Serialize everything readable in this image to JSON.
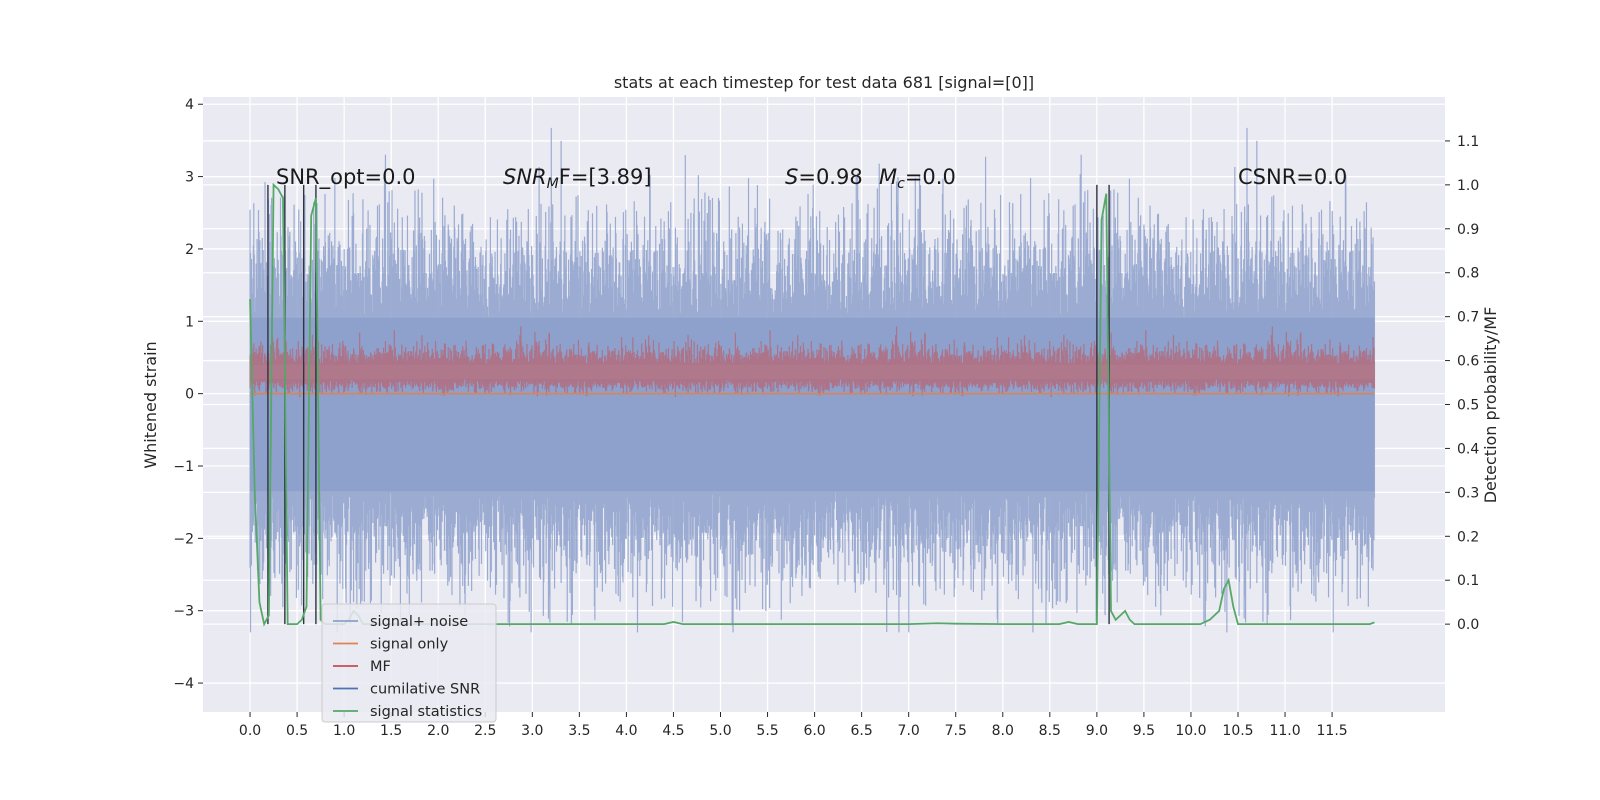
{
  "chart_data": {
    "type": "line",
    "title": "stats at each timestep for test data 681 [signal=[0]]",
    "xlabel": "",
    "ylabel": "Whitened strain",
    "y2label": "Detection probability/MF",
    "xlim": [
      -0.5,
      12.7
    ],
    "ylim": [
      -4.4,
      4.1
    ],
    "y2lim": [
      -0.2,
      1.2
    ],
    "xticks": [
      "0.0",
      "0.5",
      "1.0",
      "1.5",
      "2.0",
      "2.5",
      "3.0",
      "3.5",
      "4.0",
      "4.5",
      "5.0",
      "5.5",
      "6.0",
      "6.5",
      "7.0",
      "7.5",
      "8.0",
      "8.5",
      "9.0",
      "9.5",
      "10.0",
      "10.5",
      "11.0",
      "11.5"
    ],
    "yticks": [
      "−4",
      "−3",
      "−2",
      "−1",
      "0",
      "1",
      "2",
      "3",
      "4"
    ],
    "y2ticks": [
      "0.0",
      "0.1",
      "0.2",
      "0.3",
      "0.4",
      "0.5",
      "0.6",
      "0.7",
      "0.8",
      "0.9",
      "1.0",
      "1.1"
    ],
    "grid": true,
    "legend_position": "lower-left",
    "annotations": {
      "snr_opt": "SNR_opt=0.0",
      "snr_mf_main": "SNR",
      "snr_mf_sub": "M",
      "snr_mf_rest": "F=[3.89]",
      "s_main": "S",
      "s_rest": "=0.98",
      "mc_main": "M",
      "mc_sub": "c",
      "mc_rest": "=0.0",
      "csnr": "CSNR=0.0"
    },
    "series": [
      {
        "name": "signal+ noise",
        "color": "#8da0cb",
        "kind": "noise strip",
        "envelope": [
          -3.3,
          3.7
        ]
      },
      {
        "name": "signal only",
        "color": "#dd8452",
        "kind": "flat line",
        "values": [
          0.0
        ]
      },
      {
        "name": "MF",
        "color": "#c44e52",
        "kind": "noise strip",
        "envelope": [
          -0.05,
          1.0
        ]
      },
      {
        "name": "cumilative SNR",
        "color": "#4c72b0",
        "kind": "vertical segments"
      },
      {
        "name": "signal statistics",
        "color": "#55a868",
        "kind": "line",
        "x": [
          0.0,
          0.05,
          0.1,
          0.15,
          0.2,
          0.25,
          0.3,
          0.35,
          0.4,
          0.45,
          0.5,
          0.55,
          0.6,
          0.65,
          0.7,
          0.75,
          0.8,
          0.85,
          0.9,
          0.95,
          1.0,
          1.05,
          1.1,
          1.15,
          1.2,
          1.3,
          1.4,
          1.6,
          2.0,
          3.0,
          4.0,
          4.4,
          4.5,
          4.6,
          5.0,
          6.0,
          7.0,
          7.3,
          7.5,
          8.0,
          8.6,
          8.7,
          8.8,
          8.9,
          9.0,
          9.05,
          9.1,
          9.15,
          9.2,
          9.25,
          9.3,
          9.35,
          9.4,
          9.5,
          10.0,
          10.1,
          10.2,
          10.3,
          10.35,
          10.4,
          10.45,
          10.5,
          11.0,
          11.5,
          11.9,
          11.95
        ],
        "values": [
          0.74,
          0.3,
          0.05,
          0.0,
          0.02,
          1.0,
          0.99,
          0.97,
          0.0,
          0.0,
          0.0,
          0.01,
          0.04,
          0.93,
          0.97,
          0.01,
          0.0,
          0.0,
          0.0,
          0.0,
          0.0,
          0.01,
          0.03,
          0.02,
          0.0,
          0.0,
          0.0,
          0.0,
          0.0,
          0.0,
          0.0,
          0.0,
          0.005,
          0.0,
          0.0,
          0.0,
          0.0,
          0.002,
          0.001,
          0.0,
          0.0,
          0.005,
          0.0,
          0.0,
          0.0,
          0.92,
          0.98,
          0.03,
          0.01,
          0.02,
          0.03,
          0.01,
          0.0,
          0.0,
          0.0,
          0.0,
          0.01,
          0.03,
          0.08,
          0.1,
          0.04,
          0.0,
          0.0,
          0.0,
          0.0,
          0.004
        ]
      }
    ],
    "cumilative_snr_spikes_x": [
      0.19,
      0.37,
      0.57,
      0.7,
      9.0,
      9.13
    ]
  }
}
